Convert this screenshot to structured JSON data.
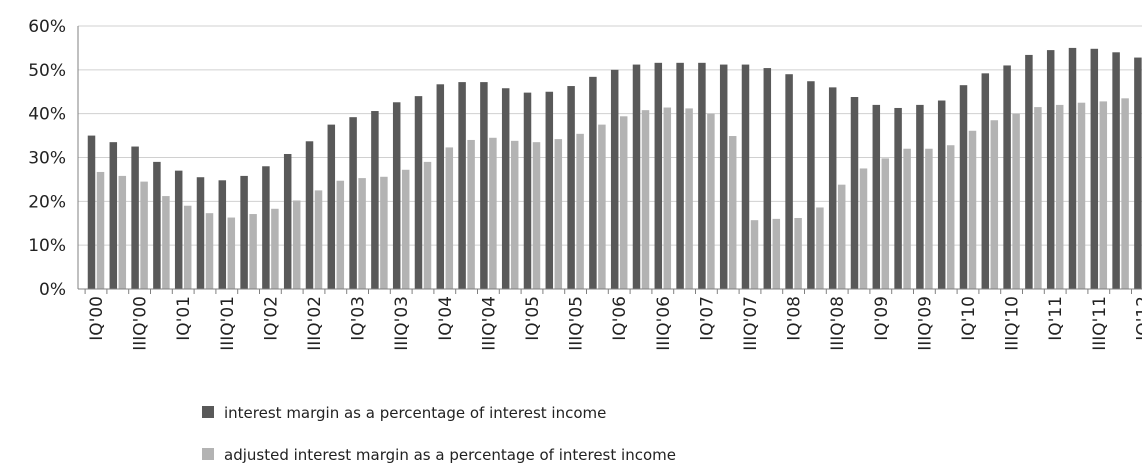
{
  "chart_data": {
    "type": "bar",
    "categories": [
      "IQ'00",
      "IIQ'00",
      "IIIQ'00",
      "IVQ'00",
      "IQ'01",
      "IIQ'01",
      "IIIQ'01",
      "IVQ'01",
      "IQ'02",
      "IIQ'02",
      "IIIQ'02",
      "IVQ'02",
      "IQ'03",
      "IIQ'03",
      "IIIQ'03",
      "IVQ'03",
      "IQ'04",
      "IIQ'04",
      "IIIQ'04",
      "IVQ'04",
      "IQ'05",
      "IIQ'05",
      "IIIQ'05",
      "IVQ'05",
      "IQ'06",
      "IIQ'06",
      "IIIQ'06",
      "IVQ'06",
      "IQ'07",
      "IIQ'07",
      "IIIQ'07",
      "IVQ'07",
      "IQ'08",
      "IIQ'08",
      "IIIQ'08",
      "IVQ'08",
      "IQ'09",
      "IIQ'09",
      "IIIQ'09",
      "IVQ'09",
      "IQ'10",
      "IIQ'10",
      "IIIQ'10",
      "IVQ'10",
      "IQ'11",
      "IIQ'11",
      "IIIQ'11",
      "IVQ'11",
      "IQ'12"
    ],
    "tick_labels": [
      "IQ'00",
      "IIIQ'00",
      "IQ'01",
      "IIIQ'01",
      "IQ'02",
      "IIIQ'02",
      "IQ'03",
      "IIIQ'03",
      "IQ'04",
      "IIIQ'04",
      "IQ'05",
      "IIIQ'05",
      "IQ'06",
      "IIIQ'06",
      "IQ'07",
      "IIIQ'07",
      "IQ'08",
      "IIIQ'08",
      "IQ'09",
      "IIIQ'09",
      "IQ'10",
      "IIIQ'10",
      "IQ'11",
      "IIIQ'11",
      "IQ'12"
    ],
    "series": [
      {
        "name": "interest margin as a percentage of interest income",
        "color": "#595959",
        "values": [
          35,
          33.5,
          32.5,
          29,
          27,
          25.5,
          24.8,
          25.8,
          28,
          30.8,
          33.7,
          37.5,
          39.2,
          40.6,
          42.6,
          44,
          46.7,
          47.2,
          47.2,
          45.8,
          44.8,
          45,
          46.3,
          48.4,
          50,
          51.2,
          51.6,
          51.6,
          51.6,
          51.2,
          51.2,
          50.4,
          49,
          47.4,
          46,
          43.8,
          42,
          41.3,
          42,
          43,
          46.5,
          49.2,
          51,
          53.4,
          54.5,
          55,
          54.8,
          54,
          52.8
        ]
      },
      {
        "name": "adjusted interest margin as a percentage of interest income",
        "color": "#b3b3b3",
        "values": [
          26.7,
          25.8,
          24.5,
          21.2,
          19,
          17.3,
          16.3,
          17.1,
          18.3,
          20.2,
          22.5,
          24.7,
          25.3,
          25.6,
          27.2,
          29,
          32.3,
          34,
          34.5,
          33.8,
          33.5,
          34.2,
          35.4,
          37.5,
          39.4,
          40.8,
          41.4,
          41.2,
          40,
          34.9,
          15.7,
          16,
          16.2,
          18.6,
          23.8,
          27.5,
          29.8,
          32,
          32,
          32.8,
          36.1,
          38.5,
          40,
          41.5,
          42,
          42.5,
          42.8,
          43.5,
          43.8
        ]
      }
    ],
    "ylim": [
      0,
      60
    ],
    "yticks": [
      "0%",
      "10%",
      "20%",
      "30%",
      "40%",
      "50%",
      "60%"
    ],
    "grid": "horizontal",
    "legend_position": "bottom"
  }
}
